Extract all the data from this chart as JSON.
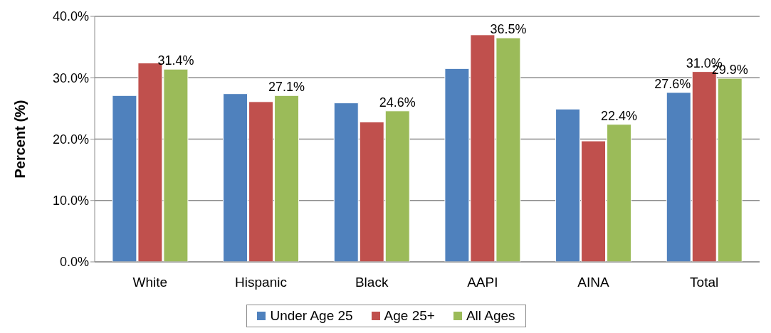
{
  "chart_data": {
    "type": "bar",
    "ylabel": "Percent (%)",
    "categories": [
      "White",
      "Hispanic",
      "Black",
      "AAPI",
      "AINA",
      "Total"
    ],
    "series": [
      {
        "name": "Under Age 25",
        "color": "#4f81bd",
        "values": [
          27.1,
          27.4,
          25.9,
          31.5,
          24.9,
          27.6
        ],
        "value_labels": [
          null,
          null,
          null,
          null,
          null,
          "27.6%"
        ]
      },
      {
        "name": "Age 25+",
        "color": "#c0504d",
        "values": [
          32.4,
          26.1,
          22.8,
          37.0,
          19.7,
          31.0
        ],
        "value_labels": [
          null,
          null,
          null,
          null,
          null,
          "31.0%"
        ]
      },
      {
        "name": "All Ages",
        "color": "#9bbb59",
        "values": [
          31.4,
          27.1,
          24.6,
          36.5,
          22.4,
          29.9
        ],
        "value_labels": [
          "31.4%",
          "27.1%",
          "24.6%",
          "36.5%",
          "22.4%",
          "29.9%"
        ]
      }
    ],
    "ylim": [
      0,
      40
    ],
    "yticks": [
      {
        "value": 0,
        "label": "0.0%"
      },
      {
        "value": 10,
        "label": "10.0%"
      },
      {
        "value": 20,
        "label": "20.0%"
      },
      {
        "value": 30,
        "label": "30.0%"
      },
      {
        "value": 40,
        "label": "40.0%"
      }
    ],
    "grid": "y",
    "legend": "bottom"
  }
}
